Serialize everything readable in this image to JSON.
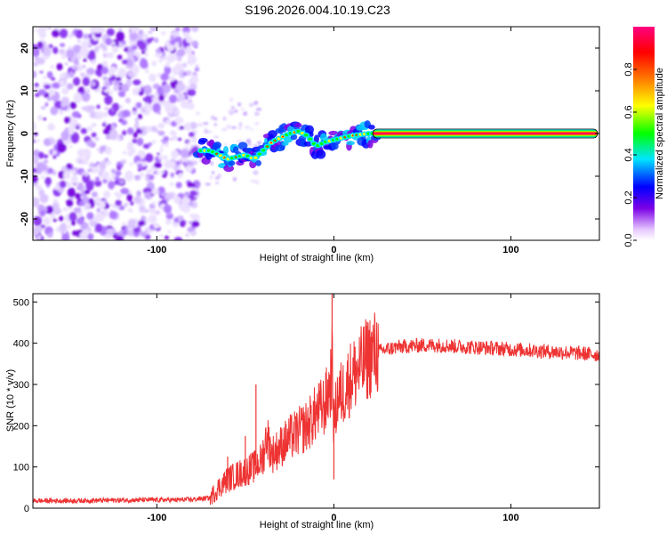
{
  "figure": {
    "title": "S196.2026.004.10.19.C23"
  },
  "chart_data": [
    {
      "type": "heatmap",
      "title": "S196.2026.004.10.19.C23",
      "xlabel": "Height of straight line (km)",
      "ylabel": "Frequency (Hz)",
      "xlim": [
        -170,
        150
      ],
      "ylim": [
        -25,
        25
      ],
      "xticks": [
        "-100",
        "0",
        "100"
      ],
      "xtick_values": [
        -100,
        0,
        100
      ],
      "yticks": [
        "-20",
        "-10",
        "0",
        "10",
        "20"
      ],
      "ytick_values": [
        -20,
        -10,
        0,
        10,
        20
      ],
      "colorbar": {
        "label": "Normalized spectral amplitude",
        "range": [
          0.0,
          1.0
        ],
        "ticks": [
          "0.0",
          "0.2",
          "0.4",
          "0.6",
          "0.8"
        ],
        "tick_values": [
          0.0,
          0.2,
          0.4,
          0.6,
          0.8
        ],
        "colormap": [
          "#ffffff",
          "#e6c8ff",
          "#7b00e6",
          "#0000ff",
          "#00e5ff",
          "#00ff00",
          "#ffff00",
          "#ff8000",
          "#ff0000",
          "#ff0080"
        ]
      },
      "noise_region_x": [
        -170,
        -77
      ],
      "ridge": {
        "x": [
          -77,
          -70,
          -65,
          -60,
          -55,
          -50,
          -45,
          -40,
          -35,
          -30,
          -25,
          -20,
          -15,
          -10,
          -5,
          0,
          5,
          10,
          20,
          30,
          60,
          100,
          150
        ],
        "y": [
          -4,
          -4,
          -5,
          -6,
          -5.5,
          -5,
          -6,
          -4,
          -2,
          -1,
          0,
          0.5,
          -0.5,
          -3,
          -2,
          -1.5,
          -1,
          -0.5,
          0,
          0,
          0,
          0,
          0
        ]
      }
    },
    {
      "type": "line",
      "xlabel": "Height of straight line (km)",
      "ylabel": "SNR (10 * v/v)",
      "xlim": [
        -170,
        150
      ],
      "ylim": [
        0,
        520
      ],
      "xticks": [
        "-100",
        "0",
        "100"
      ],
      "xtick_values": [
        -100,
        0,
        100
      ],
      "yticks": [
        "0",
        "100",
        "200",
        "300",
        "400",
        "500"
      ],
      "ytick_values": [
        0,
        100,
        200,
        300,
        400,
        500
      ],
      "series": [
        {
          "name": "SNR",
          "color": "#ee3333",
          "x": [
            -170,
            -150,
            -130,
            -110,
            -90,
            -80,
            -70,
            -65,
            -60,
            -55,
            -50,
            -45,
            -40,
            -38,
            -35,
            -30,
            -25,
            -20,
            -15,
            -10,
            -5,
            -2,
            -1,
            0,
            2,
            5,
            10,
            15,
            20,
            25,
            30,
            35,
            40,
            50,
            60,
            70,
            80,
            90,
            100,
            110,
            120,
            130,
            140,
            150
          ],
          "y": [
            18,
            18,
            19,
            20,
            20,
            21,
            25,
            50,
            70,
            80,
            90,
            100,
            120,
            180,
            130,
            150,
            170,
            185,
            200,
            230,
            250,
            300,
            350,
            200,
            270,
            280,
            320,
            340,
            370,
            380,
            385,
            390,
            392,
            395,
            395,
            392,
            390,
            388,
            385,
            383,
            380,
            378,
            375,
            372
          ]
        }
      ],
      "spikes": [
        {
          "x": -60,
          "y": 125
        },
        {
          "x": -50,
          "y": 175
        },
        {
          "x": -44,
          "y": 300
        },
        {
          "x": -40,
          "y": 165
        },
        {
          "x": -1,
          "y": 520
        },
        {
          "x": 0,
          "y": 70
        }
      ]
    }
  ]
}
